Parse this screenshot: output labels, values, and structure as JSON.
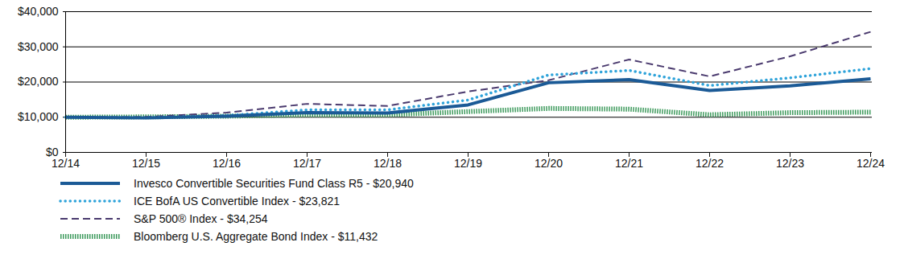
{
  "chart_data": {
    "type": "line",
    "categories": [
      "12/14",
      "12/15",
      "12/16",
      "12/17",
      "12/18",
      "12/19",
      "12/20",
      "12/21",
      "12/22",
      "12/23",
      "12/24"
    ],
    "ylim": [
      0,
      40000
    ],
    "yticks": [
      {
        "value": 0,
        "label": "$0"
      },
      {
        "value": 10000,
        "label": "$10,000"
      },
      {
        "value": 20000,
        "label": "$20,000"
      },
      {
        "value": 30000,
        "label": "$30,000"
      },
      {
        "value": 40000,
        "label": "$40,000"
      }
    ],
    "grid": true,
    "legend": "bottom",
    "series": [
      {
        "name": "Invesco Convertible Securities Fund Class R5 - $20,940",
        "color": "#1b5a96",
        "line_style": "solid",
        "values": [
          10000,
          9800,
          10300,
          11300,
          11200,
          13500,
          19800,
          20700,
          17600,
          18900,
          20940
        ]
      },
      {
        "name": "ICE BofA US Convertible Index - $23,821",
        "color": "#2ea3da",
        "line_style": "dotted",
        "values": [
          10000,
          9900,
          10500,
          12100,
          12100,
          14900,
          22000,
          23300,
          19000,
          21200,
          23821
        ]
      },
      {
        "name": "S&P 500® Index - $34,254",
        "color": "#4a3a6e",
        "line_style": "dashed",
        "values": [
          10000,
          10100,
          11300,
          13800,
          13200,
          17300,
          20500,
          26400,
          21600,
          27300,
          34254
        ]
      },
      {
        "name": "Bloomberg U.S. Aggregate Bond Index - $11,432",
        "color": "#3d9a5c",
        "line_style": "hatched",
        "values": [
          10000,
          10100,
          10300,
          10700,
          10700,
          11600,
          12500,
          12300,
          10700,
          11300,
          11432
        ]
      }
    ]
  }
}
